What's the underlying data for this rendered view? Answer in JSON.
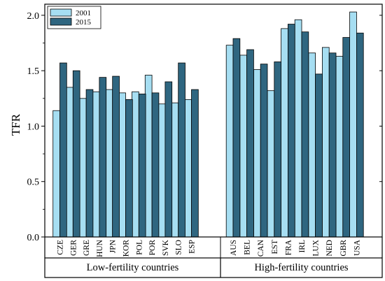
{
  "chart_data": {
    "type": "bar",
    "ylabel": "TFR",
    "ylim": [
      0,
      2.1
    ],
    "yticks": [
      "0.0",
      "0.5",
      "1.0",
      "1.5",
      "2.0"
    ],
    "grid": false,
    "legend_position": "top-left",
    "groups": [
      {
        "label": "Low-fertility countries",
        "categories": [
          "CZE",
          "GER",
          "GRE",
          "HUN",
          "JPN",
          "KOR",
          "POL",
          "POR",
          "SVK",
          "SLO",
          "ESP"
        ]
      },
      {
        "label": "High-fertility countries",
        "categories": [
          "AUS",
          "BEL",
          "CAN",
          "EST",
          "FRA",
          "IRL",
          "LUX",
          "NED",
          "GBR",
          "USA"
        ]
      }
    ],
    "series": [
      {
        "name": "2001",
        "color": "#a6def2",
        "values": [
          1.14,
          1.35,
          1.25,
          1.31,
          1.33,
          1.3,
          1.31,
          1.46,
          1.2,
          1.21,
          1.24,
          1.73,
          1.64,
          1.51,
          1.32,
          1.88,
          1.96,
          1.66,
          1.71,
          1.63,
          2.03
        ]
      },
      {
        "name": "2015",
        "color": "#2f6680",
        "values": [
          1.57,
          1.5,
          1.33,
          1.44,
          1.45,
          1.24,
          1.29,
          1.3,
          1.4,
          1.57,
          1.33,
          1.79,
          1.69,
          1.56,
          1.58,
          1.92,
          1.85,
          1.47,
          1.66,
          1.8,
          1.84
        ]
      }
    ]
  }
}
